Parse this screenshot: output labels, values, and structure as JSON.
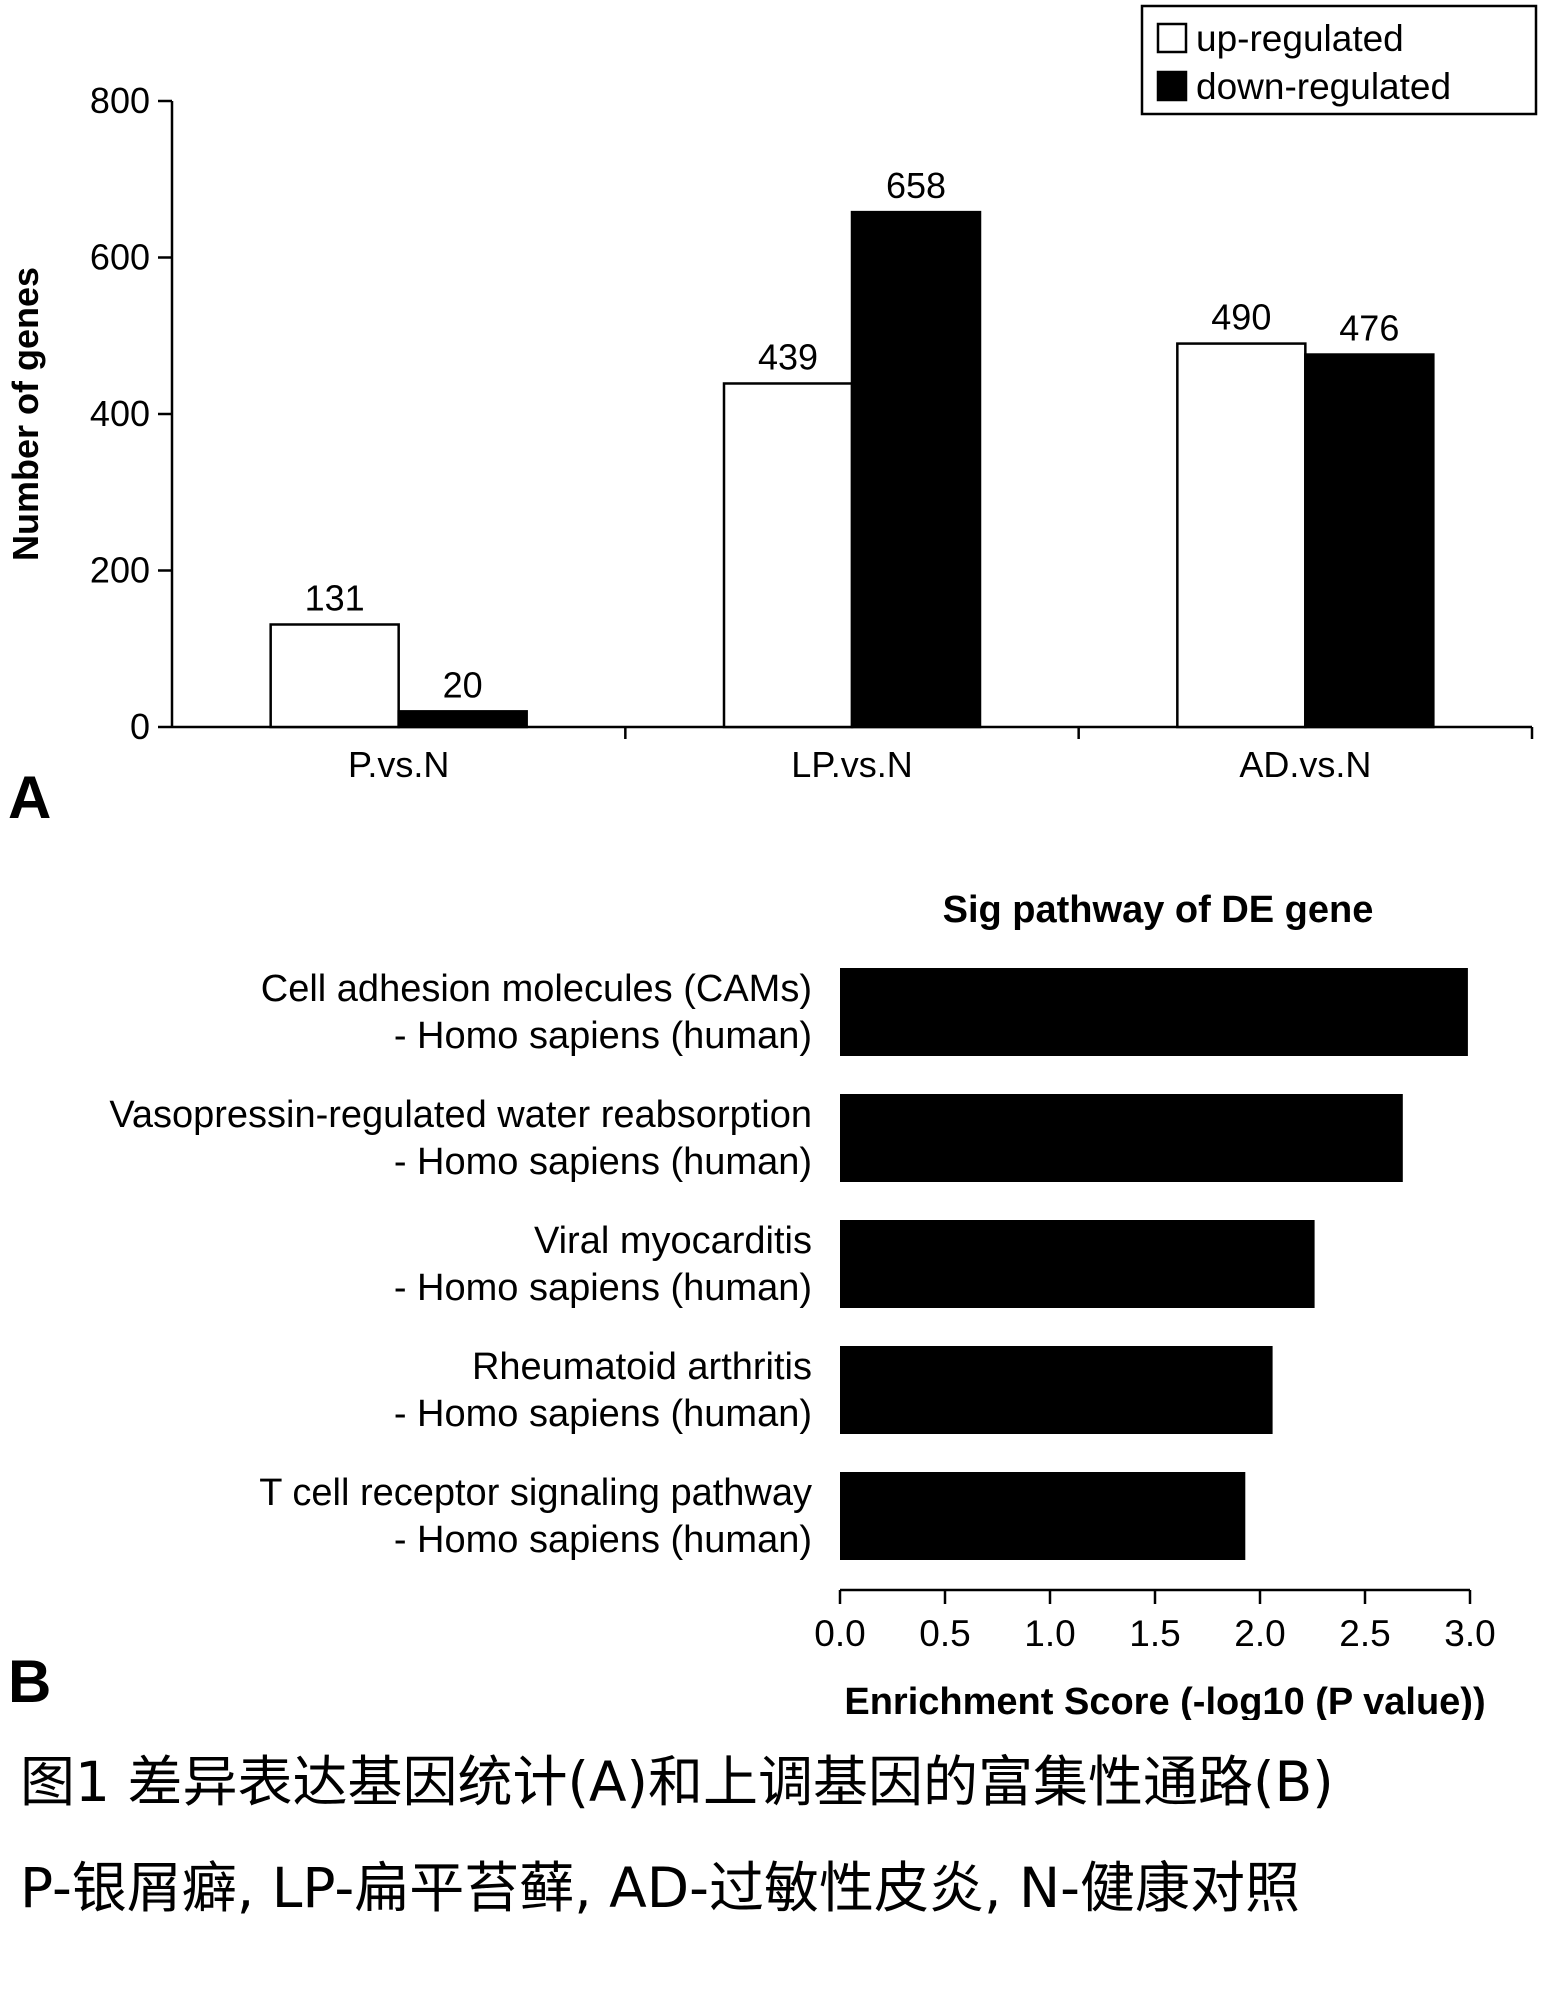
{
  "chart_data": [
    {
      "type": "bar",
      "panel_label": "A",
      "categories": [
        "P.vs.N",
        "LP.vs.N",
        "AD.vs.N"
      ],
      "series": [
        {
          "name": "up-regulated",
          "values": [
            131,
            439,
            490
          ],
          "color": "#ffffff"
        },
        {
          "name": "down-regulated",
          "values": [
            20,
            658,
            476
          ],
          "color": "#000000"
        }
      ],
      "data_labels": [
        [
          "131",
          "439",
          "490"
        ],
        [
          "20",
          "658",
          "476"
        ]
      ],
      "xlabel": "",
      "ylabel": "Number of genes",
      "ylim": [
        0,
        800
      ],
      "yticks": [
        "0",
        "200",
        "400",
        "600",
        "800"
      ],
      "legend_position": "top-right",
      "grid": false
    },
    {
      "type": "bar",
      "orientation": "horizontal",
      "panel_label": "B",
      "title": "Sig pathway of DE gene",
      "categories": [
        [
          "Cell adhesion molecules (CAMs)",
          "- Homo sapiens (human)"
        ],
        [
          "Vasopressin-regulated water reabsorption",
          "- Homo sapiens (human)"
        ],
        [
          "Viral myocarditis",
          "- Homo sapiens (human)"
        ],
        [
          "Rheumatoid arthritis",
          "- Homo sapiens (human)"
        ],
        [
          "T cell receptor signaling pathway",
          "- Homo sapiens (human)"
        ]
      ],
      "values": [
        2.99,
        2.68,
        2.26,
        2.06,
        1.93
      ],
      "color": "#000000",
      "xlabel": "Enrichment Score (-log10 (P value))",
      "xlim": [
        0,
        3.0
      ],
      "xticks": [
        "0.0",
        "0.5",
        "1.0",
        "1.5",
        "2.0",
        "2.5",
        "3.0"
      ],
      "grid": false
    }
  ],
  "caption": {
    "line1": "图1 差异表达基因统计(A)和上调基因的富集性通路(B)",
    "line2": "P-银屑癖, LP-扁平苔藓, AD-过敏性皮炎, N-健康对照"
  }
}
